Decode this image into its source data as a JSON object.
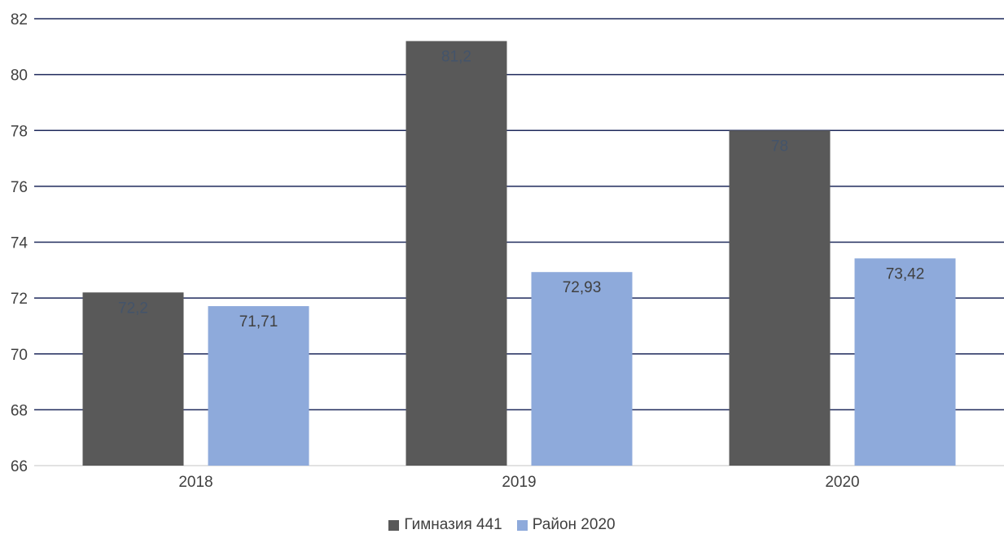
{
  "chart_data": {
    "type": "bar",
    "categories": [
      "2018",
      "2019",
      "2020"
    ],
    "series": [
      {
        "name": "Гимназия 441",
        "color": "#595959",
        "label_color": "#44546a",
        "values": [
          72.2,
          81.2,
          78
        ],
        "labels": [
          "72,2",
          "81,2",
          "78"
        ]
      },
      {
        "name": "Район 2020",
        "color": "#8eaadb",
        "label_color": "#404040",
        "values": [
          71.71,
          72.93,
          73.42
        ],
        "labels": [
          "71,71",
          "72,93",
          "73,42"
        ]
      }
    ],
    "ylim": [
      66,
      82
    ],
    "yticks": [
      66,
      68,
      70,
      72,
      74,
      76,
      78,
      80,
      82
    ],
    "grid": true,
    "grid_color": "#1f2a5c",
    "legend_position": "bottom-center",
    "title": "",
    "xlabel": "",
    "ylabel": ""
  }
}
